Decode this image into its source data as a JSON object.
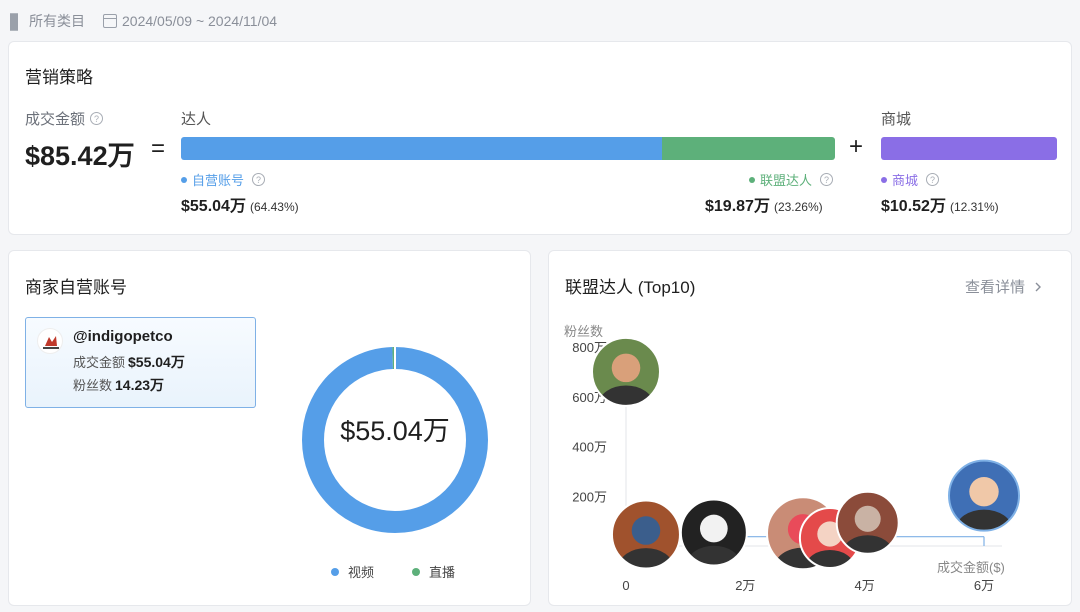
{
  "filters": {
    "category_label": "所有类目",
    "date_range": "2024/05/09 ~ 2024/11/04"
  },
  "strategy": {
    "title": "营销策略",
    "total_label": "成交金额",
    "total_value": "$85.42万",
    "eq": "=",
    "plus": "+",
    "influencer_label": "达人",
    "mall_label": "商城",
    "segments": [
      {
        "key": "self",
        "label": "自营账号",
        "value": "$55.04万",
        "pct": "(64.43%)",
        "share": 0.6443,
        "color": "#559ee8"
      },
      {
        "key": "alliance",
        "label": "联盟达人",
        "value": "$19.87万",
        "pct": "(23.26%)",
        "share": 0.2326,
        "color": "#5db07a"
      },
      {
        "key": "mall",
        "label": "商城",
        "value": "$10.52万",
        "pct": "(12.31%)",
        "share": 0.1231,
        "color": "#8a6ee6"
      }
    ]
  },
  "self_account": {
    "title": "商家自营账号",
    "handle": "@indigopetco",
    "gmv_label": "成交金额",
    "gmv_value": "$55.04万",
    "fans_label": "粉丝数",
    "fans_value": "14.23万",
    "donut_center": "$55.04万",
    "donut": {
      "series": [
        {
          "name": "视频",
          "share": 0.995,
          "color": "#559ee8"
        },
        {
          "name": "直播",
          "share": 0.005,
          "color": "#5db07a"
        }
      ]
    }
  },
  "alliance": {
    "title": "联盟达人 (Top10)",
    "detail_label": "查看详情",
    "y_label": "粉丝数",
    "x_label": "成交金额($)",
    "chart_data": {
      "type": "scatter",
      "xlabel": "成交金额($)",
      "ylabel": "粉丝数",
      "x_ticks": [
        "0",
        "2万",
        "4万",
        "6万"
      ],
      "y_ticks": [
        "200万",
        "400万",
        "600万",
        "800万"
      ],
      "x_values_wan": [
        0,
        6
      ],
      "y_values_wan": [
        0,
        800
      ],
      "points": [
        {
          "x": 0,
          "y": 700
        },
        {
          "x": 0.1,
          "y": 10
        },
        {
          "x": 0.5,
          "y": 10
        },
        {
          "x": 3.0,
          "y": 15
        },
        {
          "x": 3.3,
          "y": 20
        },
        {
          "x": 3.9,
          "y": 45
        },
        {
          "x": 6.0,
          "y": 130
        }
      ],
      "xlim": [
        0,
        6
      ],
      "ylim": [
        0,
        800
      ]
    }
  },
  "icons": {
    "category": "grid-icon",
    "calendar": "calendar-icon",
    "help": "question-icon",
    "chevron": "chevron-right-icon"
  }
}
